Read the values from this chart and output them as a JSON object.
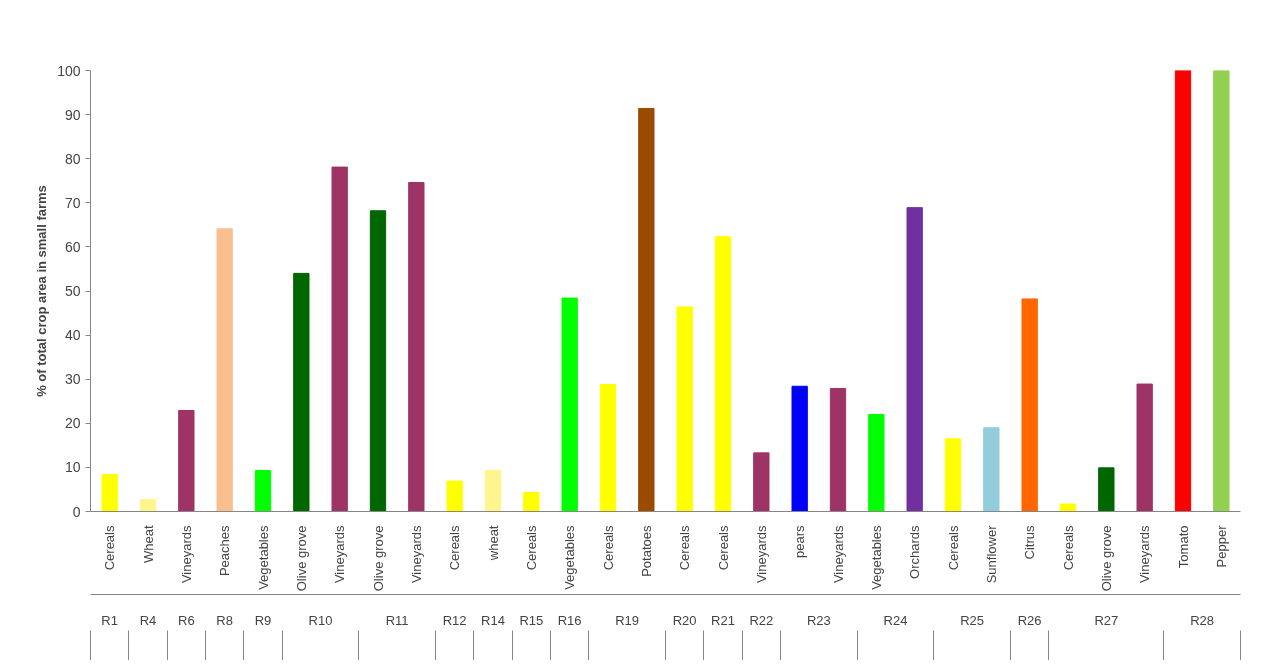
{
  "chart_data": {
    "type": "bar",
    "ylabel": "% of total crop area in small farms",
    "categories": [
      "Cereals",
      "Wheat",
      "Vineyards",
      "Peaches",
      "Vegetables",
      "Olive grove",
      "Vineyards",
      "Olive grove",
      "Vineyards",
      "Cereals",
      "wheat",
      "Cereals",
      "Vegetables",
      "Cereals",
      "Potatoes",
      "Cereals",
      "Cereals",
      "Vineyards",
      "pears",
      "Vineyards",
      "Vegetables",
      "Orchards",
      "Cereals",
      "Sunflower",
      "Citrus",
      "Cereals",
      "Olive grove",
      "Vineyards",
      "Tomato",
      "Pepper"
    ],
    "values": [
      8.4,
      2.7,
      22.9,
      64.1,
      9.3,
      54.0,
      78.1,
      68.2,
      74.6,
      6.9,
      9.3,
      4.3,
      48.4,
      28.8,
      91.4,
      46.4,
      62.3,
      13.3,
      28.4,
      27.9,
      22.0,
      68.9,
      16.5,
      19.0,
      48.2,
      1.7,
      9.9,
      28.9,
      100,
      100
    ],
    "colors": [
      "#ffff00",
      "#fff58c",
      "#9e3366",
      "#f9bf8f",
      "#00ff00",
      "#006600",
      "#9e3366",
      "#006600",
      "#9e3366",
      "#ffff00",
      "#fff58c",
      "#ffff00",
      "#00ff00",
      "#ffff00",
      "#994c00",
      "#ffff00",
      "#ffff00",
      "#9e3366",
      "#0000ff",
      "#9e3366",
      "#00ff00",
      "#7030a0",
      "#ffff00",
      "#92cddc",
      "#ff6600",
      "#ffff00",
      "#006600",
      "#9e3366",
      "#ff0000",
      "#92d050"
    ],
    "ylim": [
      0,
      100
    ],
    "yticks": [
      0,
      10,
      20,
      30,
      40,
      50,
      60,
      70,
      80,
      90,
      100
    ],
    "grid": false,
    "legend": false,
    "annotations": [
      "R1",
      "R4",
      "R6",
      "R8",
      "R9",
      "R10",
      "R11",
      "R12",
      "R14",
      "R15",
      "R16",
      "R19",
      "R20",
      "R21",
      "R22",
      "R23",
      "R24",
      "R25",
      "R26",
      "R27",
      "R28"
    ]
  }
}
